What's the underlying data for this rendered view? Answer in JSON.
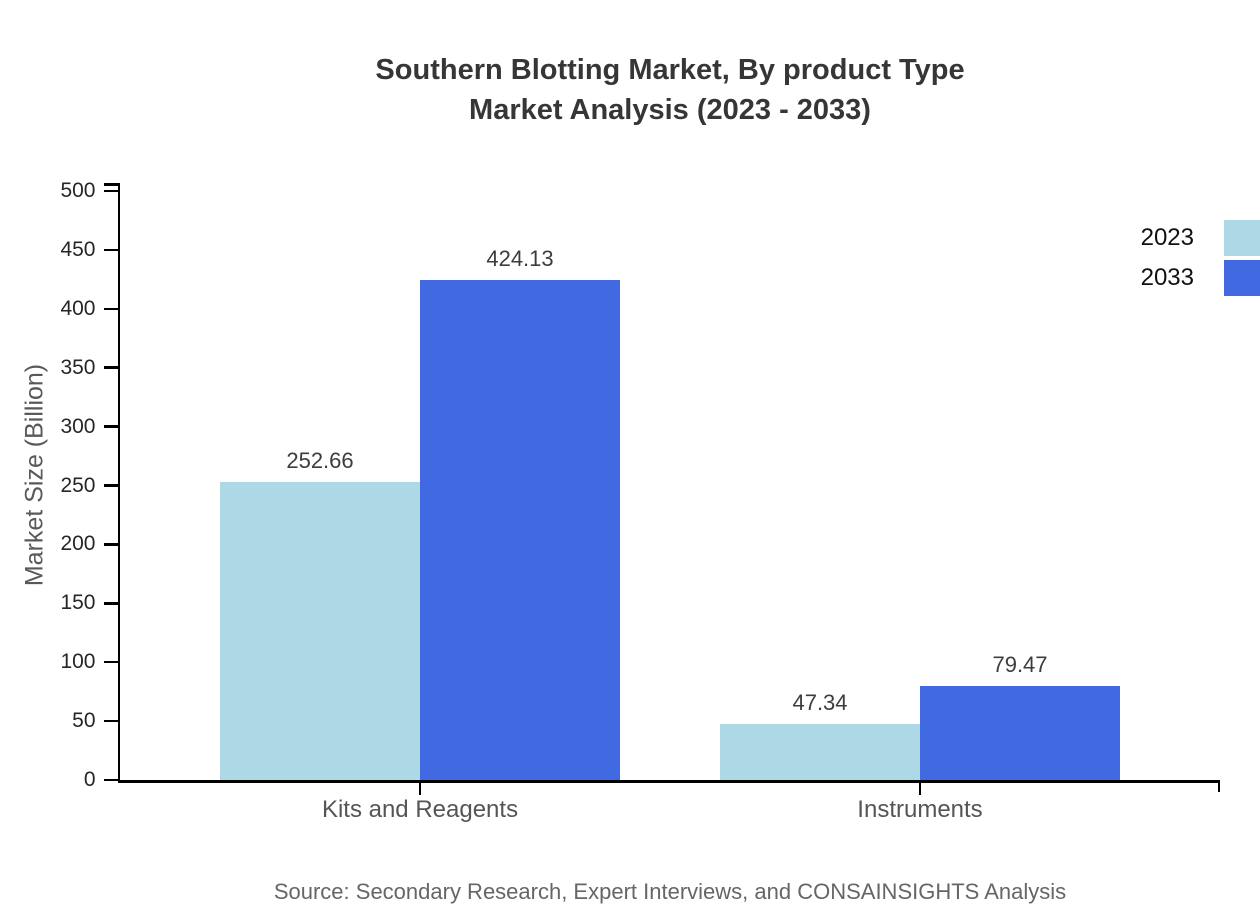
{
  "chart_data": {
    "type": "bar",
    "title": "Southern Blotting Market, By product Type Market Analysis (2023 - 2033)",
    "title_lines": [
      "Southern Blotting Market, By product Type",
      "Market Analysis (2023 - 2033)"
    ],
    "categories": [
      "Kits and Reagents",
      "Instruments"
    ],
    "series": [
      {
        "name": "2023",
        "color": "#ADD8E6",
        "values": [
          252.66,
          47.34
        ]
      },
      {
        "name": "2033",
        "color": "#4169E1",
        "values": [
          424.13,
          79.47
        ]
      }
    ],
    "value_labels": [
      [
        "252.66",
        "47.34"
      ],
      [
        "424.13",
        "79.47"
      ]
    ],
    "xlabel": "",
    "ylabel": "Market Size (Billion)",
    "ylim": [
      0,
      500
    ],
    "yticks": [
      0,
      50,
      100,
      150,
      200,
      250,
      300,
      350,
      400,
      450,
      500
    ],
    "grid": false,
    "legend_position": "top-right",
    "source": "Source: Secondary Research, Expert Interviews, and CONSAINSIGHTS Analysis",
    "colors": {
      "axis": "#000000",
      "title_text": "#363636",
      "tick_text": "#262626",
      "category_text": "#555555",
      "value_text": "#3d3d3d",
      "muted_text": "#595959"
    }
  }
}
